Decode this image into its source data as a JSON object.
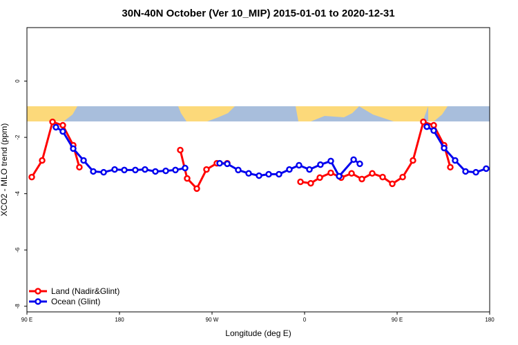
{
  "chart_data": {
    "type": "line",
    "title": "30N-40N October (Ver 10_MIP)   2015-01-01 to 2020-12-31",
    "x_label": "Longitude (deg E)",
    "y_label": "XCO2 - MLO trend (ppm)",
    "xlim": [
      90,
      540
    ],
    "ylim": [
      -8.2,
      1.9
    ],
    "xticks": [
      {
        "value": 90,
        "label": "90 E"
      },
      180,
      {
        "value": 270,
        "label": "90 W"
      },
      {
        "value": 360,
        "label": "0"
      },
      {
        "value": 450,
        "label": "90 E"
      },
      {
        "value": 540,
        "label": "180"
      }
    ],
    "yticks": [
      0,
      -2,
      -4,
      -6,
      -8
    ],
    "legend": "bottom-left",
    "series": [
      {
        "name": "Land (Nadir&Glint)",
        "color": "#ff0000",
        "x": [
          94.7,
          104.8,
          114.9,
          124.9,
          135.0,
          141.0,
          null,
          239.1,
          245.8,
          255.2,
          264.6,
          274.7,
          284.8,
          null,
          356.0,
          366.0,
          374.8,
          385.5,
          395.6,
          405.7,
          415.7,
          425.8,
          435.9,
          445.3,
          455.4,
          465.4,
          475.5,
          485.6,
          495.7,
          501.7
        ],
        "values": [
          -3.41,
          -2.82,
          -1.45,
          -1.57,
          -2.28,
          -3.06,
          null,
          -2.45,
          -3.46,
          -3.82,
          -3.14,
          -2.92,
          -2.92,
          null,
          -3.58,
          -3.63,
          -3.43,
          -3.26,
          -3.43,
          -3.28,
          -3.48,
          -3.28,
          -3.41,
          -3.65,
          -3.41,
          -2.82,
          -1.45,
          -1.57,
          -2.28,
          -3.06
        ]
      },
      {
        "name": "Ocean (Glint)",
        "color": "#0000ee",
        "x": [
          118.2,
          124.9,
          135.0,
          145.1,
          154.5,
          164.6,
          175.3,
          184.7,
          195.4,
          204.8,
          214.9,
          225.0,
          234.4,
          243.8,
          null,
          277.4,
          284.8,
          295.5,
          305.6,
          315.7,
          325.1,
          335.1,
          345.2,
          354.6,
          364.7,
          375.4,
          385.5,
          393.6,
          407.7,
          413.7,
          null,
          478.9,
          485.6,
          495.7,
          506.4,
          516.5,
          526.6,
          536.6
        ],
        "values": [
          -1.64,
          -1.79,
          -2.4,
          -2.82,
          -3.21,
          -3.24,
          -3.14,
          -3.16,
          -3.16,
          -3.14,
          -3.21,
          -3.19,
          -3.16,
          -3.09,
          null,
          -2.92,
          -2.94,
          -3.16,
          -3.28,
          -3.36,
          -3.31,
          -3.31,
          -3.14,
          -2.99,
          -3.14,
          -2.97,
          -2.84,
          -3.38,
          -2.79,
          -2.94,
          null,
          -1.62,
          -1.76,
          -2.38,
          -2.82,
          -3.21,
          -3.24,
          -3.11
        ]
      }
    ]
  }
}
